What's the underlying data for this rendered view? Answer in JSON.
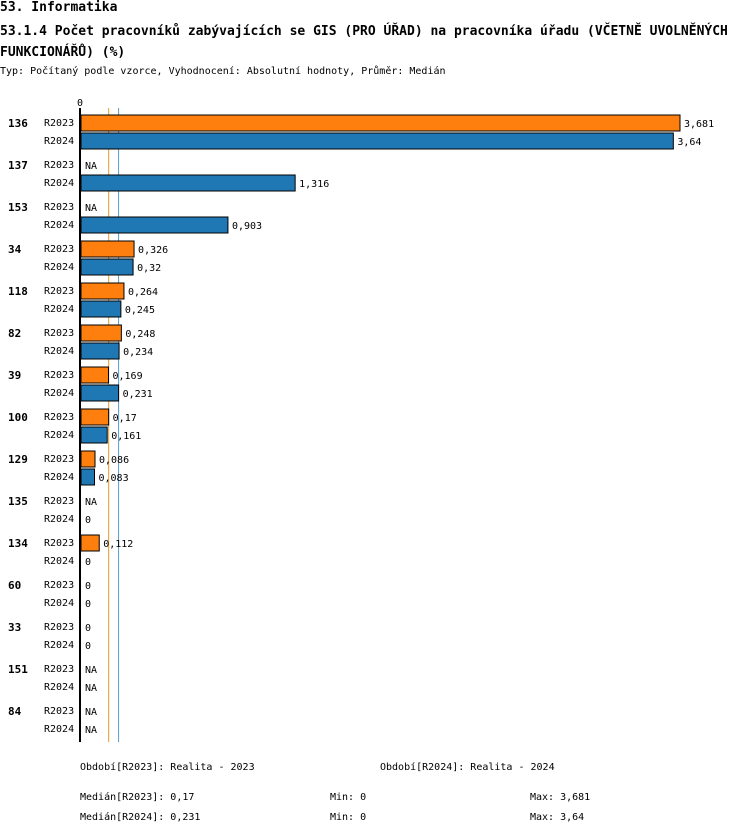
{
  "section_title": "53. Informatika",
  "chart_title": "53.1.4 Počet pracovníků zabývajících se GIS (PRO ÚŘAD) na pracovníka úřadu (VČETNĚ UVOLNĚNÝCH FUNKCIONÁŘŮ) (%)",
  "subtitle": "Typ: Počítaný podle vzorce, Vyhodnocení: Absolutní hodnoty, Průměr: Medián",
  "colors": {
    "R2023": "#ff7f0e",
    "R2024": "#1f77b4",
    "median_2023": "#e69a2e",
    "median_2024": "#5a9ac8"
  },
  "chart_data": {
    "type": "bar",
    "orientation": "horizontal",
    "xlim": [
      0,
      3.681
    ],
    "zero_label": "0",
    "series_labels": [
      "R2023",
      "R2024"
    ],
    "groups": [
      {
        "id": "136",
        "values": [
          3.681,
          3.64
        ],
        "labels": [
          "3,681",
          "3,64"
        ]
      },
      {
        "id": "137",
        "values": [
          null,
          1.316
        ],
        "labels": [
          "NA",
          "1,316"
        ]
      },
      {
        "id": "153",
        "values": [
          null,
          0.903
        ],
        "labels": [
          "NA",
          "0,903"
        ]
      },
      {
        "id": "34",
        "values": [
          0.326,
          0.32
        ],
        "labels": [
          "0,326",
          "0,32"
        ]
      },
      {
        "id": "118",
        "values": [
          0.264,
          0.245
        ],
        "labels": [
          "0,264",
          "0,245"
        ]
      },
      {
        "id": "82",
        "values": [
          0.248,
          0.234
        ],
        "labels": [
          "0,248",
          "0,234"
        ]
      },
      {
        "id": "39",
        "values": [
          0.169,
          0.231
        ],
        "labels": [
          "0,169",
          "0,231"
        ]
      },
      {
        "id": "100",
        "values": [
          0.17,
          0.161
        ],
        "labels": [
          "0,17",
          "0,161"
        ]
      },
      {
        "id": "129",
        "values": [
          0.086,
          0.083
        ],
        "labels": [
          "0,086",
          "0,083"
        ]
      },
      {
        "id": "135",
        "values": [
          null,
          0
        ],
        "labels": [
          "NA",
          "0"
        ]
      },
      {
        "id": "134",
        "values": [
          0.112,
          0
        ],
        "labels": [
          "0,112",
          "0"
        ]
      },
      {
        "id": "60",
        "values": [
          0,
          0
        ],
        "labels": [
          "0",
          "0"
        ]
      },
      {
        "id": "33",
        "values": [
          0,
          0
        ],
        "labels": [
          "0",
          "0"
        ]
      },
      {
        "id": "151",
        "values": [
          null,
          null
        ],
        "labels": [
          "NA",
          "NA"
        ]
      },
      {
        "id": "84",
        "values": [
          null,
          null
        ],
        "labels": [
          "NA",
          "NA"
        ]
      }
    ],
    "medians": [
      0.17,
      0.231
    ]
  },
  "footer": {
    "period_2023": "Období[R2023]: Realita - 2023",
    "period_2024": "Období[R2024]: Realita - 2024",
    "median_2023": "Medián[R2023]: 0,17",
    "median_2024": "Medián[R2024]: 0,231",
    "min_2023": "Min: 0",
    "min_2024": "Min: 0",
    "max_2023": "Max: 3,681",
    "max_2024": "Max: 3,64"
  }
}
